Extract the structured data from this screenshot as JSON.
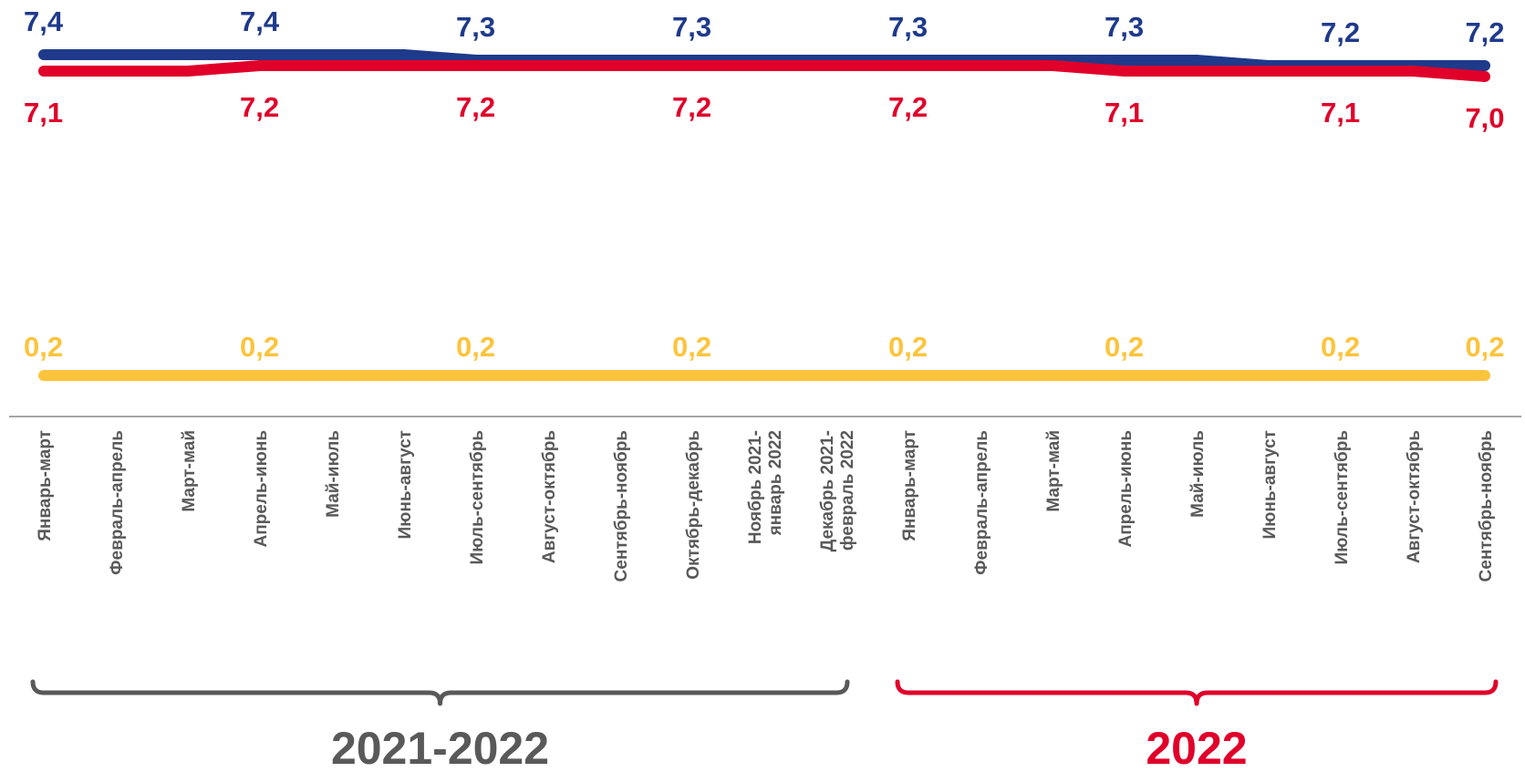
{
  "chart_data": {
    "type": "line",
    "categories": [
      "Январь-март",
      "Февраль-апрель",
      "Март-май",
      "Апрель-июнь",
      "Май-июль",
      "Июнь-август",
      "Июль-сентябрь",
      "Август-октябрь",
      "Сентябрь-ноябрь",
      "Октябрь-декабрь",
      "Ноябрь 2021-январь 2022",
      "Декабрь 2021-февраль 2022",
      "Январь-март",
      "Февраль-апрель",
      "Март-май",
      "Апрель-июнь",
      "Май-июль",
      "Июнь-август",
      "Июль-сентябрь",
      "Август-октябрь",
      "Сентябрь-ноябрь"
    ],
    "category_lines": [
      [
        "Январь-март"
      ],
      [
        "Февраль-апрель"
      ],
      [
        "Март-май"
      ],
      [
        "Апрель-июнь"
      ],
      [
        "Май-июль"
      ],
      [
        "Июнь-август"
      ],
      [
        "Июль-сентябрь"
      ],
      [
        "Август-октябрь"
      ],
      [
        "Сентябрь-ноябрь"
      ],
      [
        "Октябрь-декабрь"
      ],
      [
        "Ноябрь 2021-",
        "январь 2022"
      ],
      [
        "Декабрь 2021-",
        "февраль 2022"
      ],
      [
        "Январь-март"
      ],
      [
        "Февраль-апрель"
      ],
      [
        "Март-май"
      ],
      [
        "Апрель-июнь"
      ],
      [
        "Май-июль"
      ],
      [
        "Июнь-август"
      ],
      [
        "Июль-сентябрь"
      ],
      [
        "Август-октябрь"
      ],
      [
        "Сентябрь-ноябрь"
      ]
    ],
    "series": [
      {
        "color": "#1f3a8a",
        "values": [
          7.4,
          7.4,
          7.4,
          7.4,
          7.4,
          7.4,
          7.3,
          7.3,
          7.3,
          7.3,
          7.3,
          7.3,
          7.3,
          7.3,
          7.3,
          7.3,
          7.3,
          7.2,
          7.2,
          7.2,
          7.2
        ],
        "labels": [
          "7,4",
          "",
          "",
          "7,4",
          "",
          "",
          "7,3",
          "",
          "",
          "7,3",
          "",
          "",
          "7,3",
          "",
          "",
          "7,3",
          "",
          "",
          "7,2",
          "",
          "7,2"
        ]
      },
      {
        "color": "#e0002a",
        "values": [
          7.1,
          7.1,
          7.1,
          7.2,
          7.2,
          7.2,
          7.2,
          7.2,
          7.2,
          7.2,
          7.2,
          7.2,
          7.2,
          7.2,
          7.2,
          7.1,
          7.1,
          7.1,
          7.1,
          7.1,
          7.0
        ],
        "labels": [
          "7,1",
          "",
          "",
          "7,2",
          "",
          "",
          "7,2",
          "",
          "",
          "7,2",
          "",
          "",
          "7,2",
          "",
          "",
          "7,1",
          "",
          "",
          "7,1",
          "",
          "7,0"
        ]
      },
      {
        "color": "#fcc43d",
        "values": [
          0.2,
          0.2,
          0.2,
          0.2,
          0.2,
          0.2,
          0.2,
          0.2,
          0.2,
          0.2,
          0.2,
          0.2,
          0.2,
          0.2,
          0.2,
          0.2,
          0.2,
          0.2,
          0.2,
          0.2,
          0.2
        ],
        "labels": [
          "0,2",
          "",
          "",
          "0,2",
          "",
          "",
          "0,2",
          "",
          "",
          "0,2",
          "",
          "",
          "0,2",
          "",
          "",
          "0,2",
          "",
          "",
          "0,2",
          "",
          "0,2"
        ]
      }
    ],
    "groups": [
      {
        "label": "2021-2022",
        "from": 0,
        "to": 11,
        "color": "#595959"
      },
      {
        "label": "2022",
        "from": 12,
        "to": 20,
        "color": "#e0002a"
      }
    ],
    "axis_color": "#a6a6a6",
    "grid": false
  }
}
